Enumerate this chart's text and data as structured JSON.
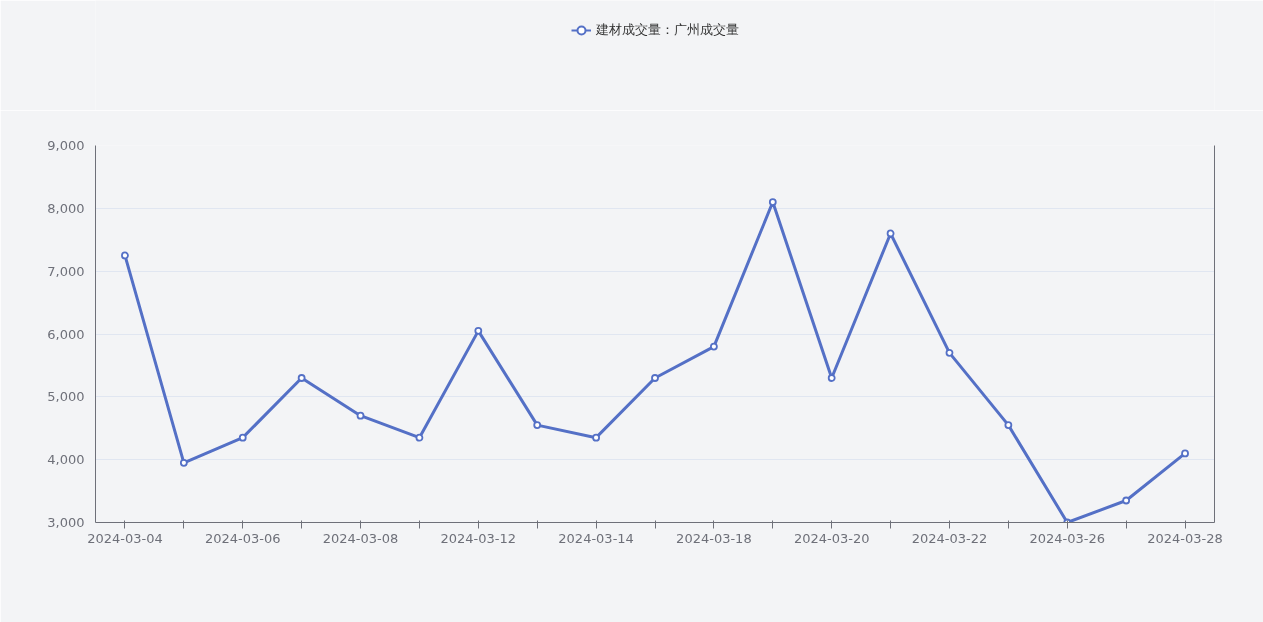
{
  "chart_data": {
    "type": "line",
    "categories": [
      "2024-03-04",
      null,
      "2024-03-06",
      null,
      "2024-03-08",
      null,
      "2024-03-12",
      null,
      "2024-03-14",
      null,
      "2024-03-18",
      null,
      "2024-03-20",
      null,
      "2024-03-22",
      null,
      "2024-03-26",
      null,
      "2024-03-28"
    ],
    "series": [
      {
        "name": "建材成交量：广州成交量",
        "color": "#5470c6",
        "values": [
          7250,
          3950,
          4350,
          5300,
          4700,
          4350,
          6050,
          4550,
          4350,
          5300,
          5800,
          8100,
          5300,
          7600,
          5700,
          4550,
          3000,
          3350,
          4100
        ]
      }
    ],
    "ylim": [
      3000,
      9000
    ],
    "yticks": [
      {
        "value": 3000,
        "label": "3,000"
      },
      {
        "value": 4000,
        "label": "4,000"
      },
      {
        "value": 5000,
        "label": "5,000"
      },
      {
        "value": 6000,
        "label": "6,000"
      },
      {
        "value": 7000,
        "label": "7,000"
      },
      {
        "value": 8000,
        "label": "8,000"
      },
      {
        "value": 9000,
        "label": "9,000"
      }
    ],
    "grid": "y",
    "legend": "top",
    "marker": "circle",
    "line_style": "solid"
  }
}
